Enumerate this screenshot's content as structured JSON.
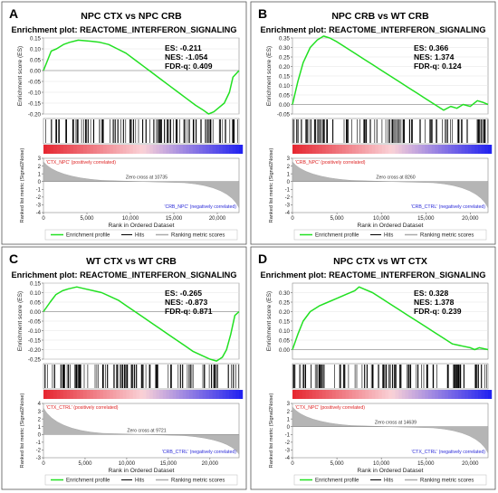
{
  "chart_data": [
    {
      "type": "line",
      "letter": "A",
      "title": "NPC CTX vs NPC CRB",
      "subtitle": "Enrichment plot: REACTOME_INTERFERON_SIGNALING",
      "stats": [
        "ES: -0.211",
        "NES: -1.054",
        "FDR-q: 0.409"
      ],
      "ylabel": "Enrichment score (ES)",
      "ylim": [
        -0.2,
        0.15
      ],
      "yticks": [
        "0.15",
        "0.10",
        "0.05",
        "0.00",
        "-0.05",
        "-0.10",
        "-0.15",
        "-0.20"
      ],
      "es_x": [
        0,
        500,
        900,
        1500,
        2300,
        3000,
        4000,
        5500,
        6500,
        7500,
        8500,
        9500,
        10500,
        11500,
        12500,
        13500,
        14500,
        15500,
        16500,
        17500,
        18300,
        19000,
        19600,
        20200,
        20800,
        21400,
        21800,
        22500
      ],
      "es_y": [
        0,
        0.05,
        0.09,
        0.1,
        0.12,
        0.13,
        0.14,
        0.135,
        0.13,
        0.12,
        0.1,
        0.08,
        0.05,
        0.02,
        -0.01,
        -0.04,
        -0.07,
        -0.1,
        -0.13,
        -0.16,
        -0.18,
        -0.2,
        -0.19,
        -0.17,
        -0.15,
        -0.1,
        -0.03,
        0
      ],
      "pos_label": "'CTX_NPC' (positively correlated)",
      "neg_label": "'CRB_NPC' (negatively correlated)",
      "zero_cross": "Zero cross at 10735",
      "metric_ylabel": "Ranked list metric (Signal2Noise)",
      "metric_yticks": [
        "3",
        "2",
        "1",
        "0",
        "-1",
        "-2",
        "-3",
        "-4"
      ],
      "xlabel": "Rank in Ordered Dataset",
      "xticks": [
        "0",
        "5,000",
        "10,000",
        "15,000",
        "20,000"
      ],
      "xmax": 22500,
      "legend": [
        "Enrichment profile",
        "Hits",
        "Ranking metric scores"
      ]
    },
    {
      "type": "line",
      "letter": "B",
      "title": "NPC CRB vs WT CRB",
      "subtitle": "Enrichment plot: REACTOME_INTERFERON_SIGNALING",
      "stats": [
        "ES: 0.366",
        "NES: 1.374",
        "FDR-q: 0.124"
      ],
      "ylabel": "Enrichment score (ES)",
      "ylim": [
        -0.05,
        0.35
      ],
      "yticks": [
        "0.35",
        "0.30",
        "0.25",
        "0.20",
        "0.15",
        "0.10",
        "0.05",
        "0.00",
        "-0.05"
      ],
      "es_x": [
        0,
        600,
        1200,
        2000,
        2800,
        3500,
        4200,
        5000,
        6000,
        7000,
        8000,
        9000,
        10000,
        11000,
        12000,
        13000,
        14000,
        15000,
        16000,
        17000,
        17800,
        18500,
        19200,
        20000,
        20800,
        21500,
        22000
      ],
      "es_y": [
        0,
        0.12,
        0.22,
        0.3,
        0.34,
        0.36,
        0.35,
        0.33,
        0.3,
        0.27,
        0.24,
        0.21,
        0.18,
        0.15,
        0.12,
        0.09,
        0.06,
        0.03,
        0.0,
        -0.03,
        -0.01,
        -0.02,
        0.0,
        -0.01,
        0.02,
        0.01,
        0.0
      ],
      "pos_label": "'CRB_NPC' (positively correlated)",
      "neg_label": "'CRB_CTRL' (negatively correlated)",
      "zero_cross": "Zero cross at 8260",
      "metric_ylabel": "Ranked list metric (Signal2Noise)",
      "metric_yticks": [
        "3",
        "2",
        "1",
        "0",
        "-1",
        "-2",
        "-3",
        "-4"
      ],
      "xlabel": "Rank in Ordered Dataset",
      "xticks": [
        "0",
        "5,000",
        "10,000",
        "15,000",
        "20,000"
      ],
      "xmax": 22000,
      "legend": [
        "Enrichment profile",
        "Hits",
        "Ranking metric scores"
      ]
    },
    {
      "type": "line",
      "letter": "C",
      "title": "WT CTX vs WT CRB",
      "subtitle": "Enrichment plot: REACTOME_INTERFERON_SIGNALING",
      "stats": [
        "ES: -0.265",
        "NES: -0.873",
        "FDR-q: 0.871"
      ],
      "ylabel": "Enrichment score (ES)",
      "ylim": [
        -0.25,
        0.15
      ],
      "yticks": [
        "0.15",
        "0.10",
        "0.05",
        "0.00",
        "-0.05",
        "-0.10",
        "-0.15",
        "-0.20",
        "-0.25"
      ],
      "es_x": [
        0,
        800,
        1500,
        2300,
        3000,
        4000,
        5000,
        6000,
        7000,
        8000,
        9000,
        10000,
        11000,
        12000,
        13000,
        14000,
        15000,
        16000,
        17000,
        18000,
        19000,
        20000,
        20800,
        21500,
        22000,
        22500,
        23000,
        23500
      ],
      "es_y": [
        0,
        0.05,
        0.09,
        0.11,
        0.12,
        0.13,
        0.12,
        0.11,
        0.1,
        0.08,
        0.06,
        0.03,
        0.0,
        -0.03,
        -0.06,
        -0.09,
        -0.12,
        -0.15,
        -0.18,
        -0.21,
        -0.23,
        -0.25,
        -0.26,
        -0.24,
        -0.2,
        -0.12,
        -0.02,
        0
      ],
      "pos_label": "'CTX_CTRL' (positively correlated)",
      "neg_label": "'CRB_CTRL' (negatively correlated)",
      "zero_cross": "Zero cross at 9721",
      "metric_ylabel": "Ranked list metric (Signal2Noise)",
      "metric_yticks": [
        "4",
        "3",
        "2",
        "1",
        "0",
        "-1",
        "-2",
        "-3"
      ],
      "xlabel": "Rank in Ordered Dataset",
      "xticks": [
        "0",
        "5,000",
        "10,000",
        "15,000",
        "20,000"
      ],
      "xmax": 23500,
      "legend": [
        "Enrichment profile",
        "Hits",
        "Ranking metric scores"
      ]
    },
    {
      "type": "line",
      "letter": "D",
      "title": "NPC CTX vs WT CTX",
      "subtitle": "Enrichment plot: REACTOME_INTERFERON_SIGNALING",
      "stats": [
        "ES: 0.328",
        "NES: 1.378",
        "FDR-q: 0.239"
      ],
      "ylabel": "Enrichment score (ES)",
      "ylim": [
        -0.05,
        0.35
      ],
      "yticks": [
        "0.30",
        "0.25",
        "0.20",
        "0.15",
        "0.10",
        "0.05",
        "0.00"
      ],
      "es_x": [
        0,
        600,
        1200,
        2000,
        3000,
        4000,
        5000,
        6000,
        7000,
        7500,
        8000,
        9000,
        10000,
        11000,
        12000,
        13000,
        14000,
        15000,
        16000,
        17000,
        18000,
        19000,
        20000,
        20500,
        21000,
        22000
      ],
      "es_y": [
        0,
        0.08,
        0.15,
        0.2,
        0.23,
        0.25,
        0.27,
        0.29,
        0.31,
        0.33,
        0.32,
        0.3,
        0.27,
        0.24,
        0.21,
        0.18,
        0.15,
        0.12,
        0.09,
        0.06,
        0.03,
        0.02,
        0.01,
        0.0,
        0.01,
        0.0
      ],
      "pos_label": "'CTX_NPC' (positively correlated)",
      "neg_label": "'CTX_CTRL' (negatively correlated)",
      "zero_cross": "Zero cross at 14639",
      "metric_ylabel": "Ranked list metric (Signal2Noise)",
      "metric_yticks": [
        "3",
        "2",
        "1",
        "0",
        "-1",
        "-2",
        "-3",
        "-4"
      ],
      "xlabel": "Rank in Ordered Dataset",
      "xticks": [
        "0",
        "5,000",
        "10,000",
        "15,000",
        "20,000"
      ],
      "xmax": 22000,
      "legend": [
        "Enrichment profile",
        "Hits",
        "Ranking metric scores"
      ]
    }
  ]
}
